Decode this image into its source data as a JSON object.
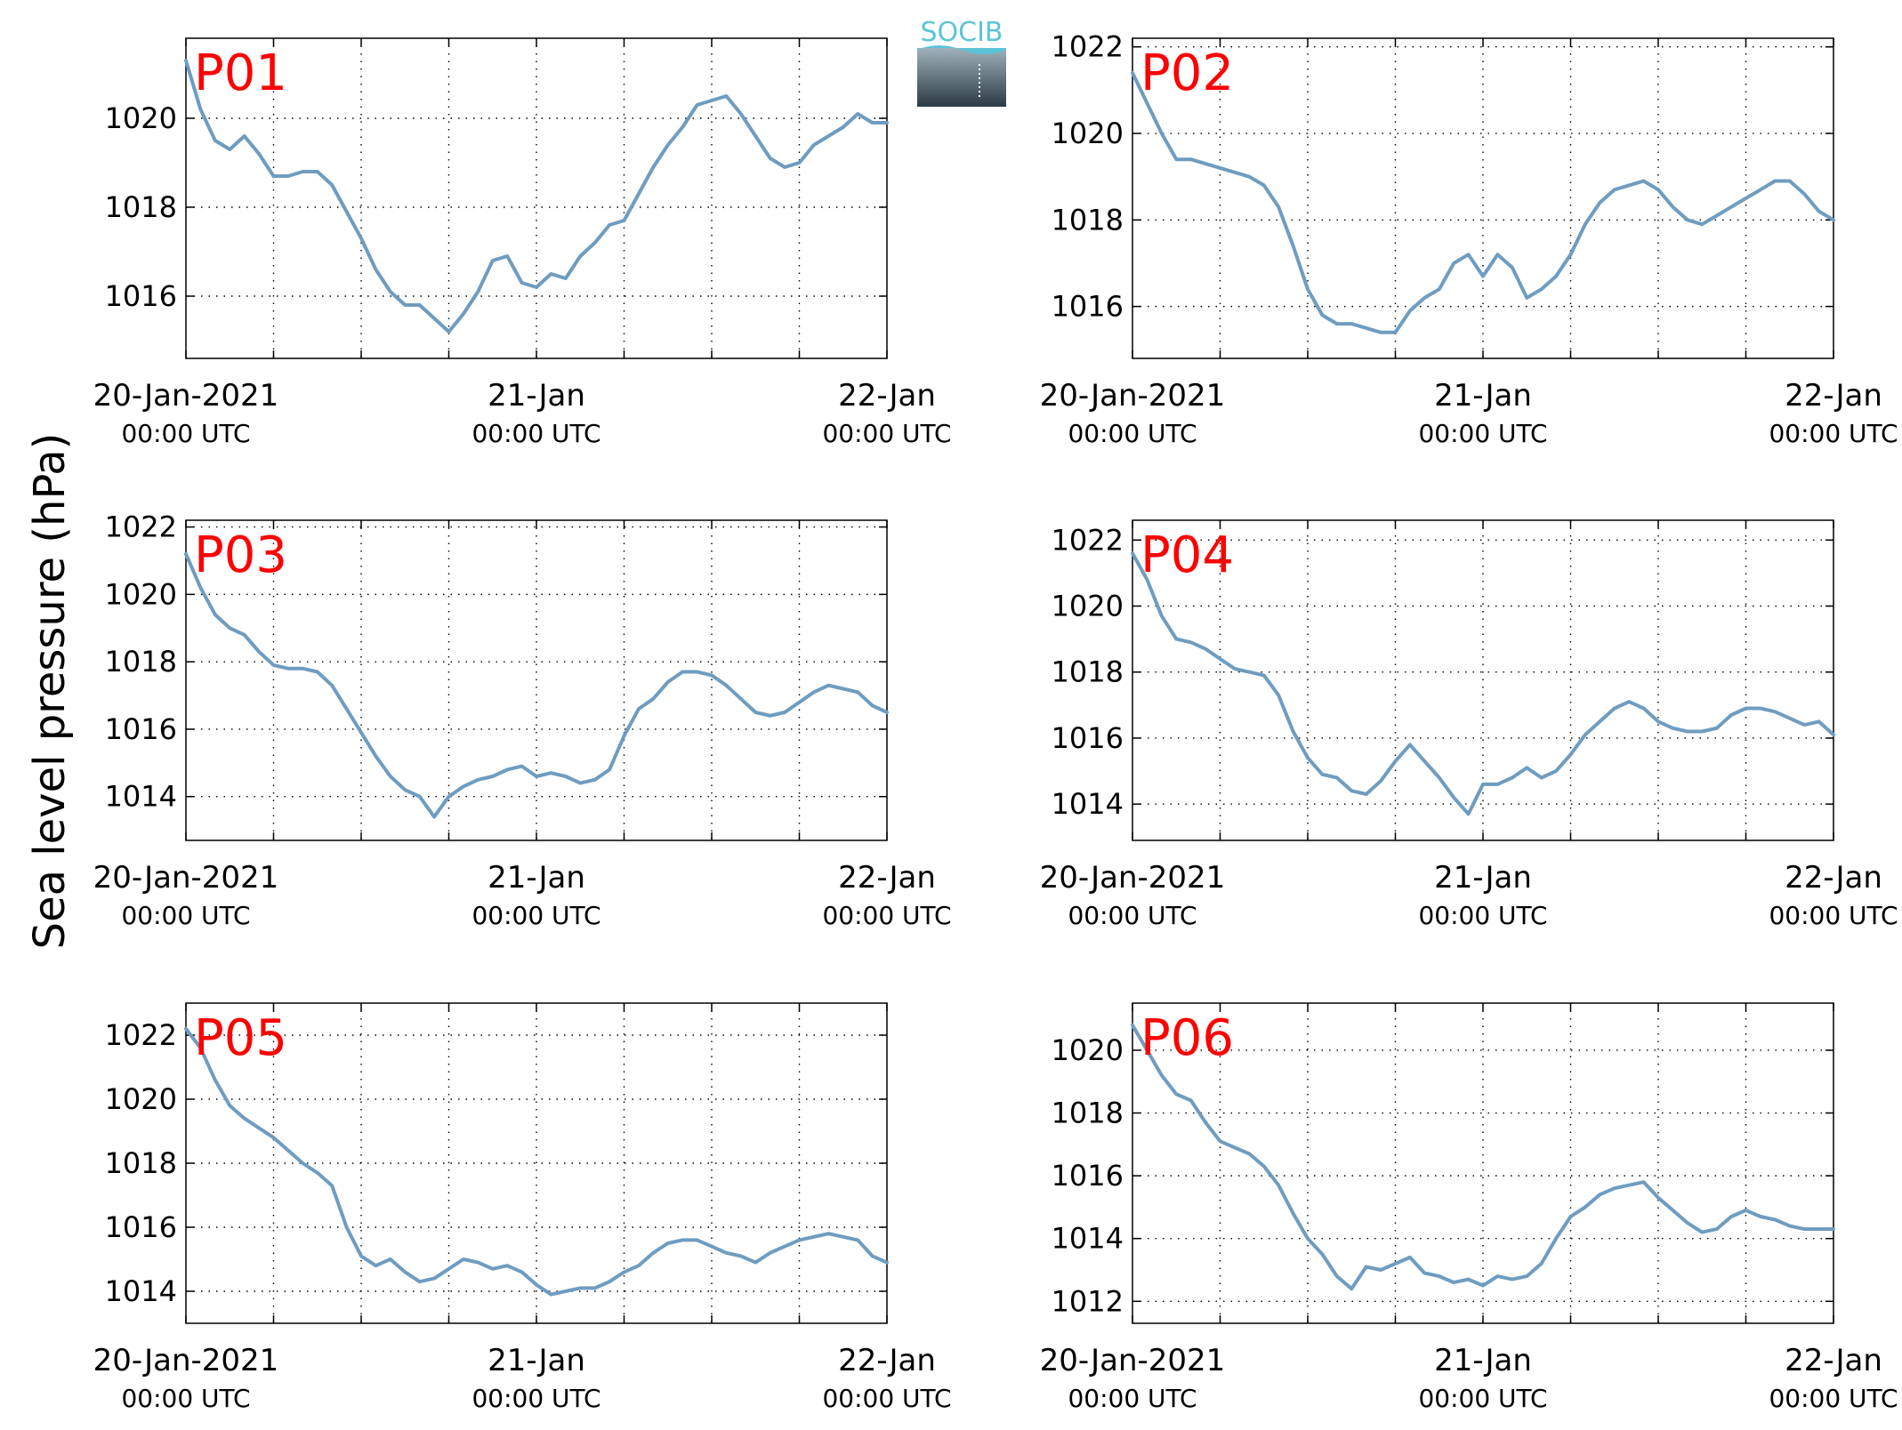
{
  "figure": {
    "ylabel": "Sea level pressure (hPa)",
    "logo": {
      "text": "SOCIB",
      "color": "#5bc4d8",
      "icon": "socib-logo"
    }
  },
  "colors": {
    "series": "#6f9cc0",
    "panel_label": "#ff0000",
    "axis": "#000000"
  },
  "chart_data": [
    {
      "type": "line",
      "label": "P01",
      "x_ticks": [
        {
          "main": "20-Jan-2021",
          "sub": "00:00 UTC"
        },
        {
          "main": "21-Jan",
          "sub": "00:00 UTC"
        },
        {
          "main": "22-Jan",
          "sub": "00:00 UTC"
        }
      ],
      "x_range_hours": [
        0,
        48
      ],
      "grid_x_hours": [
        6,
        12,
        18,
        24,
        30,
        36,
        42
      ],
      "yticks": [
        1016,
        1018,
        1020
      ],
      "ylim": [
        1014.6,
        1021.8
      ],
      "grid": true,
      "series": [
        {
          "x": [
            0,
            1,
            2,
            3,
            4,
            5,
            6,
            7,
            8,
            9,
            10,
            11,
            12,
            13,
            14,
            15,
            16,
            17,
            18,
            19,
            20,
            21,
            22,
            23,
            24,
            25,
            26,
            27,
            28,
            29,
            30,
            31,
            32,
            33,
            34,
            35,
            36,
            37,
            38,
            39,
            40,
            41,
            42,
            43,
            44,
            45,
            46,
            47,
            48
          ],
          "y": [
            1021.3,
            1020.2,
            1019.5,
            1019.3,
            1019.6,
            1019.2,
            1018.7,
            1018.7,
            1018.8,
            1018.8,
            1018.5,
            1017.9,
            1017.3,
            1016.6,
            1016.1,
            1015.8,
            1015.8,
            1015.5,
            1015.2,
            1015.6,
            1016.1,
            1016.8,
            1016.9,
            1016.3,
            1016.2,
            1016.5,
            1016.4,
            1016.9,
            1017.2,
            1017.6,
            1017.7,
            1018.3,
            1018.9,
            1019.4,
            1019.8,
            1020.3,
            1020.4,
            1020.5,
            1020.1,
            1019.6,
            1019.1,
            1018.9,
            1019.0,
            1019.4,
            1019.6,
            1019.8,
            1020.1,
            1019.9,
            1019.9
          ]
        }
      ]
    },
    {
      "type": "line",
      "label": "P02",
      "x_ticks": [
        {
          "main": "20-Jan-2021",
          "sub": "00:00 UTC"
        },
        {
          "main": "21-Jan",
          "sub": "00:00 UTC"
        },
        {
          "main": "22-Jan",
          "sub": "00:00 UTC"
        }
      ],
      "x_range_hours": [
        0,
        48
      ],
      "grid_x_hours": [
        6,
        12,
        18,
        24,
        30,
        36,
        42
      ],
      "yticks": [
        1016,
        1018,
        1020,
        1022
      ],
      "ylim": [
        1014.8,
        1022.2
      ],
      "grid": true,
      "series": [
        {
          "x": [
            0,
            1,
            2,
            3,
            4,
            5,
            6,
            7,
            8,
            9,
            10,
            11,
            12,
            13,
            14,
            15,
            16,
            17,
            18,
            19,
            20,
            21,
            22,
            23,
            24,
            25,
            26,
            27,
            28,
            29,
            30,
            31,
            32,
            33,
            34,
            35,
            36,
            37,
            38,
            39,
            40,
            41,
            42,
            43,
            44,
            45,
            46,
            47,
            48
          ],
          "y": [
            1021.4,
            1020.7,
            1020.0,
            1019.4,
            1019.4,
            1019.3,
            1019.2,
            1019.1,
            1019.0,
            1018.8,
            1018.3,
            1017.4,
            1016.4,
            1015.8,
            1015.6,
            1015.6,
            1015.5,
            1015.4,
            1015.4,
            1015.9,
            1016.2,
            1016.4,
            1017.0,
            1017.2,
            1016.7,
            1017.2,
            1016.9,
            1016.2,
            1016.4,
            1016.7,
            1017.2,
            1017.9,
            1018.4,
            1018.7,
            1018.8,
            1018.9,
            1018.7,
            1018.3,
            1018.0,
            1017.9,
            1018.1,
            1018.3,
            1018.5,
            1018.7,
            1018.9,
            1018.9,
            1018.6,
            1018.2,
            1018.0
          ]
        }
      ]
    },
    {
      "type": "line",
      "label": "P03",
      "x_ticks": [
        {
          "main": "20-Jan-2021",
          "sub": "00:00 UTC"
        },
        {
          "main": "21-Jan",
          "sub": "00:00 UTC"
        },
        {
          "main": "22-Jan",
          "sub": "00:00 UTC"
        }
      ],
      "x_range_hours": [
        0,
        48
      ],
      "grid_x_hours": [
        6,
        12,
        18,
        24,
        30,
        36,
        42
      ],
      "yticks": [
        1014,
        1016,
        1018,
        1020,
        1022
      ],
      "ylim": [
        1012.7,
        1022.2
      ],
      "grid": true,
      "series": [
        {
          "x": [
            0,
            1,
            2,
            3,
            4,
            5,
            6,
            7,
            8,
            9,
            10,
            11,
            12,
            13,
            14,
            15,
            16,
            17,
            18,
            19,
            20,
            21,
            22,
            23,
            24,
            25,
            26,
            27,
            28,
            29,
            30,
            31,
            32,
            33,
            34,
            35,
            36,
            37,
            38,
            39,
            40,
            41,
            42,
            43,
            44,
            45,
            46,
            47,
            48
          ],
          "y": [
            1021.2,
            1020.2,
            1019.4,
            1019.0,
            1018.8,
            1018.3,
            1017.9,
            1017.8,
            1017.8,
            1017.7,
            1017.3,
            1016.6,
            1015.9,
            1015.2,
            1014.6,
            1014.2,
            1014.0,
            1013.4,
            1014.0,
            1014.3,
            1014.5,
            1014.6,
            1014.8,
            1014.9,
            1014.6,
            1014.7,
            1014.6,
            1014.4,
            1014.5,
            1014.8,
            1015.8,
            1016.6,
            1016.9,
            1017.4,
            1017.7,
            1017.7,
            1017.6,
            1017.3,
            1016.9,
            1016.5,
            1016.4,
            1016.5,
            1016.8,
            1017.1,
            1017.3,
            1017.2,
            1017.1,
            1016.7,
            1016.5
          ]
        }
      ]
    },
    {
      "type": "line",
      "label": "P04",
      "x_ticks": [
        {
          "main": "20-Jan-2021",
          "sub": "00:00 UTC"
        },
        {
          "main": "21-Jan",
          "sub": "00:00 UTC"
        },
        {
          "main": "22-Jan",
          "sub": "00:00 UTC"
        }
      ],
      "x_range_hours": [
        0,
        48
      ],
      "grid_x_hours": [
        6,
        12,
        18,
        24,
        30,
        36,
        42
      ],
      "yticks": [
        1014,
        1016,
        1018,
        1020,
        1022
      ],
      "ylim": [
        1012.9,
        1022.6
      ],
      "grid": true,
      "series": [
        {
          "x": [
            0,
            1,
            2,
            3,
            4,
            5,
            6,
            7,
            8,
            9,
            10,
            11,
            12,
            13,
            14,
            15,
            16,
            17,
            18,
            19,
            20,
            21,
            22,
            23,
            24,
            25,
            26,
            27,
            28,
            29,
            30,
            31,
            32,
            33,
            34,
            35,
            36,
            37,
            38,
            39,
            40,
            41,
            42,
            43,
            44,
            45,
            46,
            47,
            48
          ],
          "y": [
            1021.6,
            1020.8,
            1019.7,
            1019.0,
            1018.9,
            1018.7,
            1018.4,
            1018.1,
            1018.0,
            1017.9,
            1017.3,
            1016.2,
            1015.4,
            1014.9,
            1014.8,
            1014.4,
            1014.3,
            1014.7,
            1015.3,
            1015.8,
            1015.3,
            1014.8,
            1014.2,
            1013.7,
            1014.6,
            1014.6,
            1014.8,
            1015.1,
            1014.8,
            1015.0,
            1015.5,
            1016.1,
            1016.5,
            1016.9,
            1017.1,
            1016.9,
            1016.5,
            1016.3,
            1016.2,
            1016.2,
            1016.3,
            1016.7,
            1016.9,
            1016.9,
            1016.8,
            1016.6,
            1016.4,
            1016.5,
            1016.1
          ]
        }
      ]
    },
    {
      "type": "line",
      "label": "P05",
      "x_ticks": [
        {
          "main": "20-Jan-2021",
          "sub": "00:00 UTC"
        },
        {
          "main": "21-Jan",
          "sub": "00:00 UTC"
        },
        {
          "main": "22-Jan",
          "sub": "00:00 UTC"
        }
      ],
      "x_range_hours": [
        0,
        48
      ],
      "grid_x_hours": [
        6,
        12,
        18,
        24,
        30,
        36,
        42
      ],
      "yticks": [
        1014,
        1016,
        1018,
        1020,
        1022
      ],
      "ylim": [
        1013.0,
        1023.0
      ],
      "grid": true,
      "series": [
        {
          "x": [
            0,
            1,
            2,
            3,
            4,
            5,
            6,
            7,
            8,
            9,
            10,
            11,
            12,
            13,
            14,
            15,
            16,
            17,
            18,
            19,
            20,
            21,
            22,
            23,
            24,
            25,
            26,
            27,
            28,
            29,
            30,
            31,
            32,
            33,
            34,
            35,
            36,
            37,
            38,
            39,
            40,
            41,
            42,
            43,
            44,
            45,
            46,
            47,
            48
          ],
          "y": [
            1022.2,
            1021.6,
            1020.6,
            1019.8,
            1019.4,
            1019.1,
            1018.8,
            1018.4,
            1018.0,
            1017.7,
            1017.3,
            1016.0,
            1015.1,
            1014.8,
            1015.0,
            1014.6,
            1014.3,
            1014.4,
            1014.7,
            1015.0,
            1014.9,
            1014.7,
            1014.8,
            1014.6,
            1014.2,
            1013.9,
            1014.0,
            1014.1,
            1014.1,
            1014.3,
            1014.6,
            1014.8,
            1015.2,
            1015.5,
            1015.6,
            1015.6,
            1015.4,
            1015.2,
            1015.1,
            1014.9,
            1015.2,
            1015.4,
            1015.6,
            1015.7,
            1015.8,
            1015.7,
            1015.6,
            1015.1,
            1014.9
          ]
        }
      ]
    },
    {
      "type": "line",
      "label": "P06",
      "x_ticks": [
        {
          "main": "20-Jan-2021",
          "sub": "00:00 UTC"
        },
        {
          "main": "21-Jan",
          "sub": "00:00 UTC"
        },
        {
          "main": "22-Jan",
          "sub": "00:00 UTC"
        }
      ],
      "x_range_hours": [
        0,
        48
      ],
      "grid_x_hours": [
        6,
        12,
        18,
        24,
        30,
        36,
        42
      ],
      "yticks": [
        1012,
        1014,
        1016,
        1018,
        1020
      ],
      "ylim": [
        1011.3,
        1021.5
      ],
      "grid": true,
      "series": [
        {
          "x": [
            0,
            1,
            2,
            3,
            4,
            5,
            6,
            7,
            8,
            9,
            10,
            11,
            12,
            13,
            14,
            15,
            16,
            17,
            18,
            19,
            20,
            21,
            22,
            23,
            24,
            25,
            26,
            27,
            28,
            29,
            30,
            31,
            32,
            33,
            34,
            35,
            36,
            37,
            38,
            39,
            40,
            41,
            42,
            43,
            44,
            45,
            46,
            47,
            48
          ],
          "y": [
            1020.8,
            1020.0,
            1019.2,
            1018.6,
            1018.4,
            1017.7,
            1017.1,
            1016.9,
            1016.7,
            1016.3,
            1015.7,
            1014.8,
            1014.0,
            1013.5,
            1012.8,
            1012.4,
            1013.1,
            1013.0,
            1013.2,
            1013.4,
            1012.9,
            1012.8,
            1012.6,
            1012.7,
            1012.5,
            1012.8,
            1012.7,
            1012.8,
            1013.2,
            1014.0,
            1014.7,
            1015.0,
            1015.4,
            1015.6,
            1015.7,
            1015.8,
            1015.3,
            1014.9,
            1014.5,
            1014.2,
            1014.3,
            1014.7,
            1014.9,
            1014.7,
            1014.6,
            1014.4,
            1014.3,
            1014.3,
            1014.3
          ]
        }
      ]
    }
  ]
}
